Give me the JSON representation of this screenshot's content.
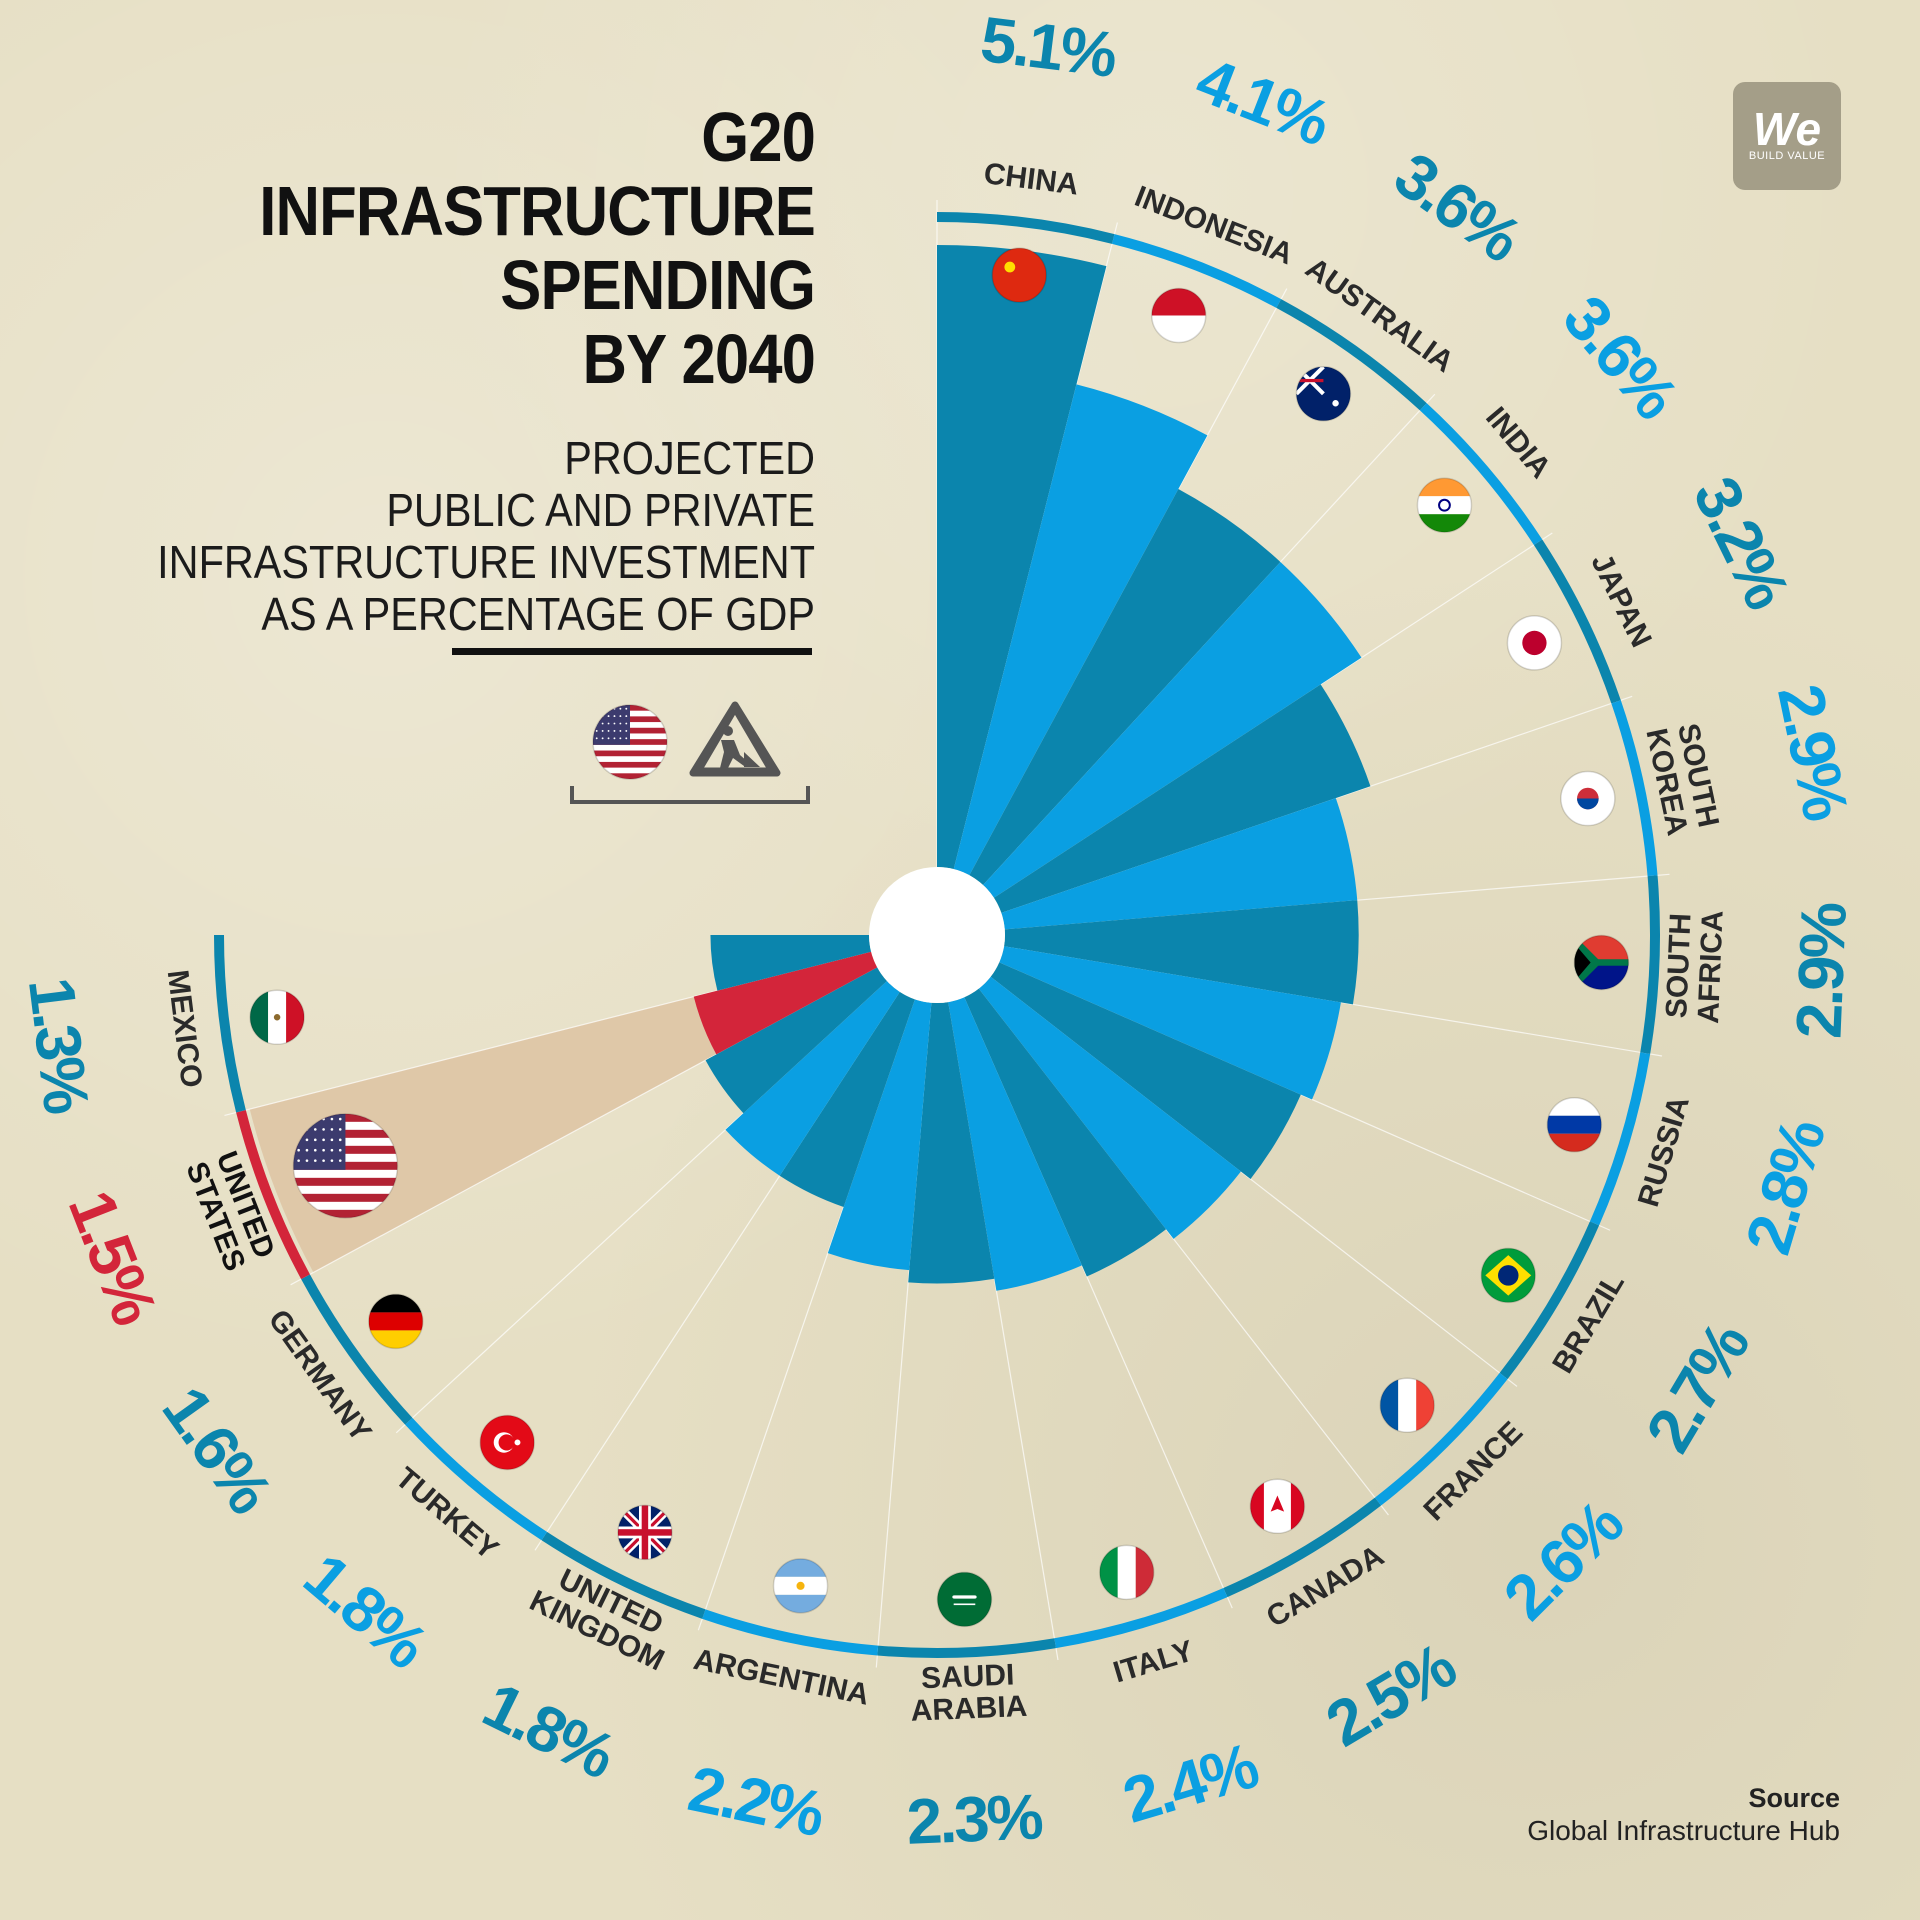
{
  "title": [
    "G20",
    "INFRASTRUCTURE",
    "SPENDING",
    "BY 2040"
  ],
  "subtitle": [
    "PROJECTED",
    "PUBLIC AND PRIVATE",
    "INFRASTRUCTURE INVESTMENT",
    "AS A PERCENTAGE OF GDP"
  ],
  "logo": {
    "main": "We",
    "sub": "BUILD VALUE"
  },
  "source": {
    "label": "Source",
    "value": "Global Infrastructure Hub"
  },
  "colors": {
    "dark": "#0b85ad",
    "light": "#0a9fe2",
    "highlight": "#d3253a",
    "background": "#e6dfc4",
    "wedge_shadow": "#dfc8a8"
  },
  "legend_icons": [
    "us-flag-icon",
    "construction-worker-icon"
  ],
  "chart_data": {
    "type": "polar-bar",
    "unit": "%",
    "highlight": "UNITED STATES",
    "max_value": 5.1,
    "series": [
      {
        "name": "CHINA",
        "value": 5.1,
        "label": "5.1%",
        "flag": "china-flag-icon"
      },
      {
        "name": "INDONESIA",
        "value": 4.1,
        "label": "4.1%",
        "flag": "indonesia-flag-icon"
      },
      {
        "name": "AUSTRALIA",
        "value": 3.6,
        "label": "3.6%",
        "flag": "australia-flag-icon"
      },
      {
        "name": "INDIA",
        "value": 3.6,
        "label": "3.6%",
        "flag": "india-flag-icon"
      },
      {
        "name": "JAPAN",
        "value": 3.2,
        "label": "3.2%",
        "flag": "japan-flag-icon"
      },
      {
        "name": "SOUTH KOREA",
        "value": 2.9,
        "label": "2.9%",
        "flag": "south-korea-flag-icon"
      },
      {
        "name": "SOUTH AFRICA",
        "value": 2.9,
        "label": "2.9%",
        "flag": "south-africa-flag-icon"
      },
      {
        "name": "RUSSIA",
        "value": 2.8,
        "label": "2.8%",
        "flag": "russia-flag-icon"
      },
      {
        "name": "BRAZIL",
        "value": 2.7,
        "label": "2.7%",
        "flag": "brazil-flag-icon"
      },
      {
        "name": "FRANCE",
        "value": 2.6,
        "label": "2.6%",
        "flag": "france-flag-icon"
      },
      {
        "name": "CANADA",
        "value": 2.5,
        "label": "2.5%",
        "flag": "canada-flag-icon"
      },
      {
        "name": "ITALY",
        "value": 2.4,
        "label": "2.4%",
        "flag": "italy-flag-icon"
      },
      {
        "name": "SAUDI ARABIA",
        "value": 2.3,
        "label": "2.3%",
        "flag": "saudi-arabia-flag-icon"
      },
      {
        "name": "ARGENTINA",
        "value": 2.2,
        "label": "2.2%",
        "flag": "argentina-flag-icon"
      },
      {
        "name": "UNITED KINGDOM",
        "value": 1.8,
        "label": "1.8%",
        "flag": "uk-flag-icon"
      },
      {
        "name": "TURKEY",
        "value": 1.8,
        "label": "1.8%",
        "flag": "turkey-flag-icon"
      },
      {
        "name": "GERMANY",
        "value": 1.6,
        "label": "1.6%",
        "flag": "germany-flag-icon"
      },
      {
        "name": "UNITED STATES",
        "value": 1.5,
        "label": "1.5%",
        "flag": "us-flag-icon"
      },
      {
        "name": "MEXICO",
        "value": 1.3,
        "label": "1.3%",
        "flag": "mexico-flag-icon"
      }
    ]
  }
}
